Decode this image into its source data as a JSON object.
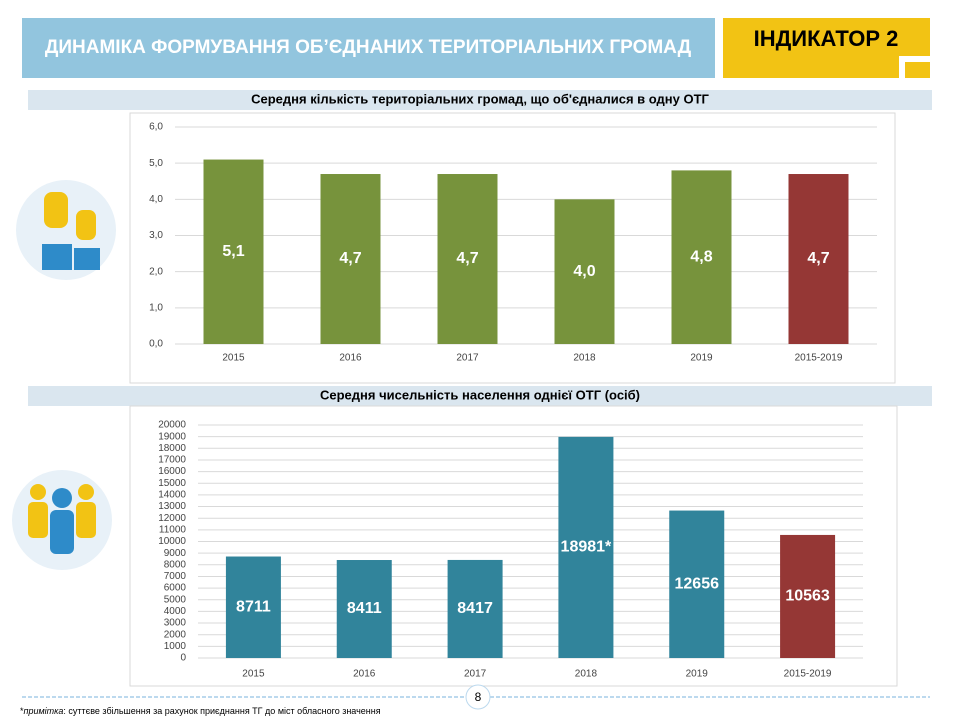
{
  "header": {
    "title": "ДИНАМІКА ФОРМУВАННЯ ОБ’ЄДНАНИХ ТЕРИТОРІАЛЬНИХ ГРОМАД",
    "indicator": "ІНДИКАТОР 2"
  },
  "chart_data": [
    {
      "type": "bar",
      "title": "Середня кількість  територіальних  громад, що об'єдналися  в одну ОТГ",
      "categories": [
        "2015",
        "2016",
        "2017",
        "2018",
        "2019",
        "2015-2019"
      ],
      "values": [
        5.1,
        4.7,
        4.7,
        4.0,
        4.8,
        4.7
      ],
      "value_labels": [
        "5,1",
        "4,7",
        "4,7",
        "4,0",
        "4,8",
        "4,7"
      ],
      "colors": [
        "#77933c",
        "#77933c",
        "#77933c",
        "#77933c",
        "#77933c",
        "#953735"
      ],
      "ylim": [
        0,
        6
      ],
      "yticks": [
        {
          "value": 0,
          "label": "0,0"
        },
        {
          "value": 1,
          "label": "1,0"
        },
        {
          "value": 2,
          "label": "2,0"
        },
        {
          "value": 3,
          "label": "3,0"
        },
        {
          "value": 4,
          "label": "4,0"
        },
        {
          "value": 5,
          "label": "5,0"
        },
        {
          "value": 6,
          "label": "6,0"
        }
      ],
      "grid": true
    },
    {
      "type": "bar",
      "title": "Середня чисельність  населення  однієї ОТГ (осіб)",
      "categories": [
        "2015",
        "2016",
        "2017",
        "2018",
        "2019",
        "2015-2019"
      ],
      "values": [
        8711,
        8411,
        8417,
        18981,
        12656,
        10563
      ],
      "value_labels": [
        "8711",
        "8411",
        "8417",
        "18981*",
        "12656",
        "10563"
      ],
      "colors": [
        "#31849b",
        "#31849b",
        "#31849b",
        "#31849b",
        "#31849b",
        "#953735"
      ],
      "ylim": [
        0,
        20000
      ],
      "yticks": [
        0,
        1000,
        2000,
        3000,
        4000,
        5000,
        6000,
        7000,
        8000,
        9000,
        10000,
        11000,
        12000,
        13000,
        14000,
        15000,
        16000,
        17000,
        18000,
        19000,
        20000
      ],
      "grid": true
    }
  ],
  "footer": {
    "page": "8",
    "note_mark": "*",
    "note_emphasis": "примітка",
    "note_text": ": суттєве збільшення за рахунок приєднання ТГ до міст обласного значення"
  }
}
